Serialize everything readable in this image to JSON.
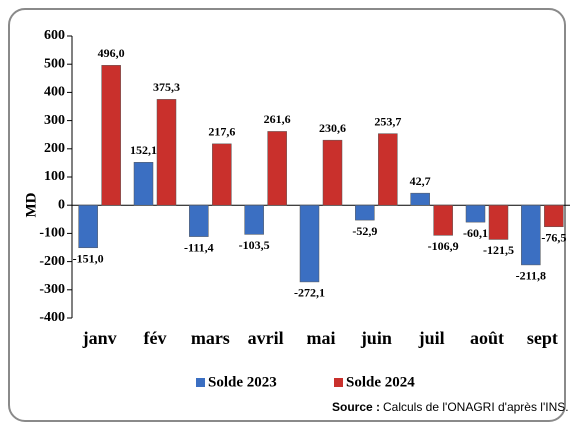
{
  "chart_data": {
    "type": "bar",
    "y_label": "MD",
    "categories": [
      "janv",
      "fév",
      "mars",
      "avril",
      "mai",
      "juin",
      "juil",
      "août",
      "sept"
    ],
    "series": [
      {
        "name": "Solde 2023",
        "color": "#3b6fc2",
        "values": [
          -151.0,
          152.1,
          -111.4,
          -103.5,
          -272.1,
          -52.9,
          42.7,
          -60.1,
          -211.8
        ],
        "value_labels": [
          "-151,0",
          "152,1",
          "-111,4",
          "-103,5",
          "-272,1",
          "-52,9",
          "42,7",
          "-60,1",
          "-211,8"
        ]
      },
      {
        "name": "Solde 2024",
        "color": "#c9302c",
        "values": [
          496.0,
          375.3,
          217.6,
          261.6,
          230.6,
          253.7,
          -106.9,
          -121.5,
          -76.5
        ],
        "value_labels": [
          "496,0",
          "375,3",
          "217,6",
          "261,6",
          "230,6",
          "253,7",
          "-106,9",
          "-121,5",
          "-76,5"
        ]
      }
    ],
    "ylim": [
      -400,
      600
    ],
    "yticks": [
      -400,
      -300,
      -200,
      -100,
      0,
      100,
      200,
      300,
      400,
      500,
      600
    ],
    "legend": "bottom",
    "source_label": "Source :",
    "source_text": "Calculs de l'ONAGRI d'après l'INS."
  }
}
